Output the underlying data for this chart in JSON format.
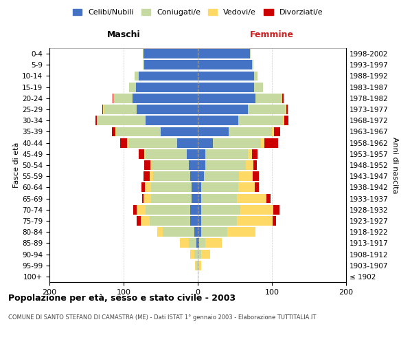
{
  "age_groups": [
    "100+",
    "95-99",
    "90-94",
    "85-89",
    "80-84",
    "75-79",
    "70-74",
    "65-69",
    "60-64",
    "55-59",
    "50-54",
    "45-49",
    "40-44",
    "35-39",
    "30-34",
    "25-29",
    "20-24",
    "15-19",
    "10-14",
    "5-9",
    "0-4"
  ],
  "birth_years": [
    "≤ 1902",
    "1903-1907",
    "1908-1912",
    "1913-1917",
    "1918-1922",
    "1923-1927",
    "1928-1932",
    "1933-1937",
    "1938-1942",
    "1943-1947",
    "1948-1952",
    "1953-1957",
    "1958-1962",
    "1963-1967",
    "1968-1972",
    "1973-1977",
    "1978-1982",
    "1983-1987",
    "1988-1992",
    "1993-1997",
    "1998-2002"
  ],
  "males": {
    "celibi": [
      0,
      0,
      0,
      2,
      5,
      10,
      10,
      8,
      8,
      10,
      12,
      15,
      28,
      50,
      70,
      82,
      88,
      83,
      80,
      72,
      73
    ],
    "coniugati": [
      0,
      2,
      5,
      10,
      42,
      55,
      60,
      55,
      55,
      50,
      50,
      55,
      65,
      60,
      65,
      45,
      25,
      10,
      5,
      2,
      1
    ],
    "vedovi": [
      0,
      2,
      5,
      12,
      8,
      12,
      12,
      10,
      8,
      5,
      2,
      2,
      2,
      1,
      1,
      1,
      1,
      0,
      0,
      0,
      0
    ],
    "divorziati": [
      0,
      0,
      0,
      0,
      0,
      5,
      5,
      2,
      5,
      8,
      8,
      8,
      10,
      5,
      2,
      1,
      1,
      0,
      0,
      0,
      0
    ]
  },
  "females": {
    "nubili": [
      0,
      0,
      0,
      2,
      5,
      5,
      5,
      5,
      5,
      8,
      10,
      10,
      20,
      42,
      55,
      68,
      78,
      76,
      76,
      73,
      70
    ],
    "coniugate": [
      0,
      2,
      5,
      8,
      35,
      48,
      52,
      48,
      50,
      48,
      55,
      58,
      65,
      58,
      60,
      50,
      35,
      12,
      5,
      2,
      1
    ],
    "vedove": [
      0,
      3,
      12,
      22,
      38,
      48,
      45,
      40,
      22,
      18,
      10,
      5,
      5,
      3,
      2,
      1,
      1,
      0,
      0,
      0,
      0
    ],
    "divorziate": [
      0,
      0,
      0,
      0,
      0,
      5,
      8,
      5,
      5,
      8,
      5,
      8,
      18,
      8,
      5,
      2,
      2,
      0,
      0,
      0,
      0
    ]
  },
  "colors": {
    "celibi": "#4472C4",
    "coniugati": "#c5d9a0",
    "vedovi": "#FFD966",
    "divorziati": "#CC0000"
  },
  "xlim": [
    -200,
    200
  ],
  "xticks": [
    -200,
    -100,
    0,
    100,
    200
  ],
  "xticklabels": [
    "200",
    "100",
    "0",
    "100",
    "200"
  ],
  "title": "Popolazione per età, sesso e stato civile - 2003",
  "subtitle": "COMUNE DI SANTO STEFANO DI CAMASTRA (ME) - Dati ISTAT 1° gennaio 2003 - Elaborazione TUTTITALIA.IT",
  "ylabel_left": "Fasce di età",
  "ylabel_right": "Anni di nascita",
  "maschi_label": "Maschi",
  "femmine_label": "Femmine",
  "legend_labels": [
    "Celibi/Nubili",
    "Coniugati/e",
    "Vedovi/e",
    "Divorziati/e"
  ],
  "bg_color": "#FFFFFF",
  "grid_color": "#CCCCCC"
}
